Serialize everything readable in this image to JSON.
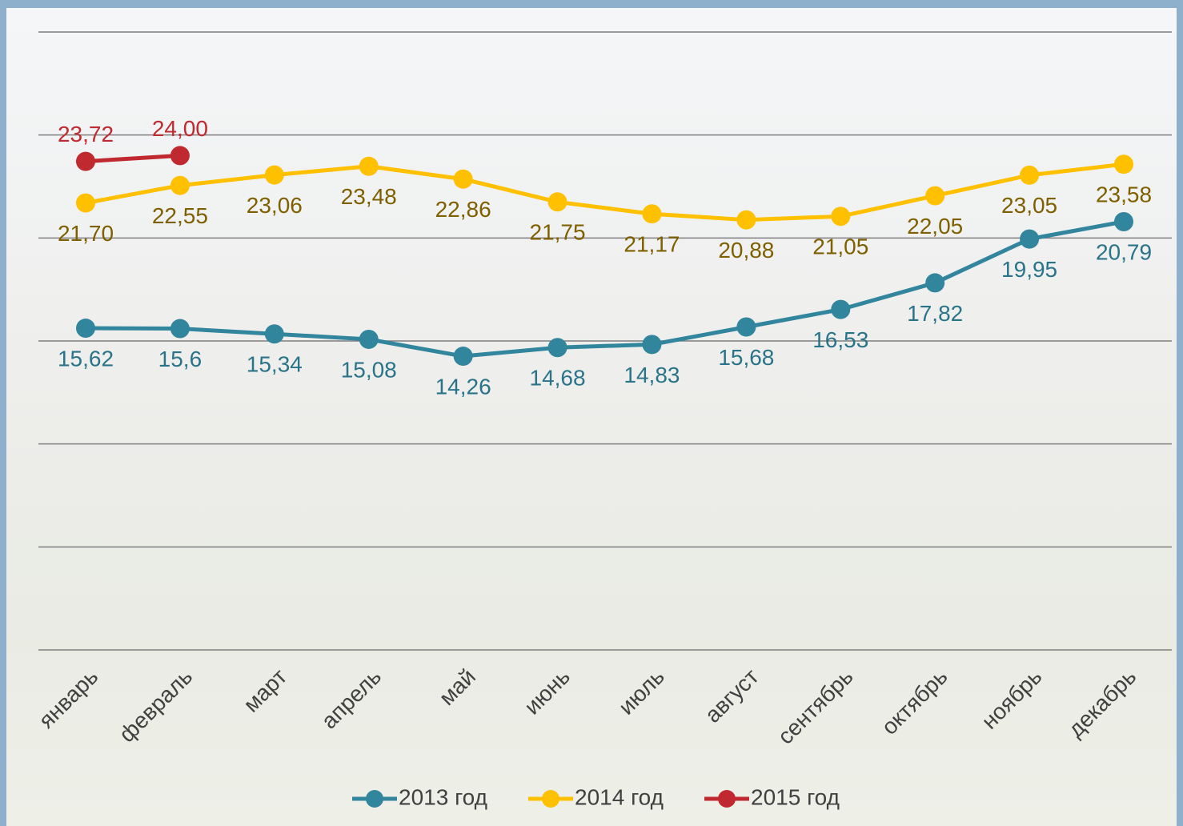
{
  "chart_data": {
    "type": "line",
    "categories": [
      "январь",
      "февраль",
      "март",
      "апрель",
      "май",
      "июнь",
      "июль",
      "август",
      "сентябрь",
      "октябрь",
      "ноябрь",
      "декабрь"
    ],
    "series": [
      {
        "name": "2013 год",
        "color": "#31859c",
        "label_color": "#2a7489",
        "values": [
          15.62,
          15.6,
          15.34,
          15.08,
          14.26,
          14.68,
          14.83,
          15.68,
          16.53,
          17.82,
          19.95,
          20.79
        ],
        "value_labels": [
          "15,62",
          "15,6",
          "15,34",
          "15,08",
          "14,26",
          "14,68",
          "14,83",
          "15,68",
          "16,53",
          "17,82",
          "19,95",
          "20,79"
        ]
      },
      {
        "name": "2014 год",
        "color": "#ffc000",
        "label_color": "#7f6000",
        "values": [
          21.7,
          22.55,
          23.06,
          23.48,
          22.86,
          21.75,
          21.17,
          20.88,
          21.05,
          22.05,
          23.05,
          23.58
        ],
        "value_labels": [
          "21,70",
          "22,55",
          "23,06",
          "23,48",
          "22,86",
          "21,75",
          "21,17",
          "20,88",
          "21,05",
          "22,05",
          "23,05",
          "23,58"
        ]
      },
      {
        "name": "2015 год",
        "color": "#c0292f",
        "label_color": "#c0292f",
        "values": [
          23.72,
          24.0,
          null,
          null,
          null,
          null,
          null,
          null,
          null,
          null,
          null,
          null
        ],
        "value_labels": [
          "23,72",
          "24,00",
          null,
          null,
          null,
          null,
          null,
          null,
          null,
          null,
          null,
          null
        ]
      }
    ],
    "ylim": [
      0,
      30
    ],
    "yticks": [
      0,
      5,
      10,
      15,
      20,
      25,
      30
    ],
    "grid": true,
    "legend": "bottom"
  }
}
